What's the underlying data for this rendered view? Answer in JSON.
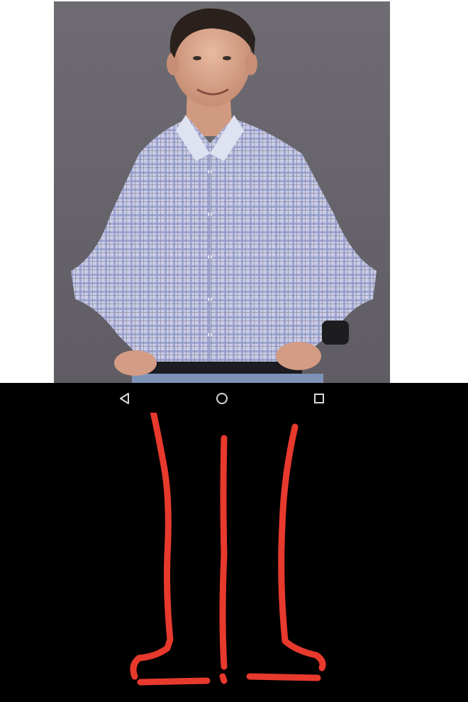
{
  "photo": {
    "subject": "man-in-checkered-shirt-photo"
  },
  "navigation_bar": {
    "buttons": [
      {
        "icon": "back-triangle-icon"
      },
      {
        "icon": "home-circle-icon"
      },
      {
        "icon": "recents-square-icon"
      }
    ],
    "icon_color": "#d8d8d8",
    "background": "#000000"
  },
  "drawing": {
    "stroke_color": "#e8392d",
    "description_icon": "hand-drawn-legs-doodle"
  },
  "colors": {
    "photo_backdrop": "#6b6870",
    "shirt": "#a9b3d6",
    "page_background": "#ffffff",
    "lower_background": "#000000"
  }
}
